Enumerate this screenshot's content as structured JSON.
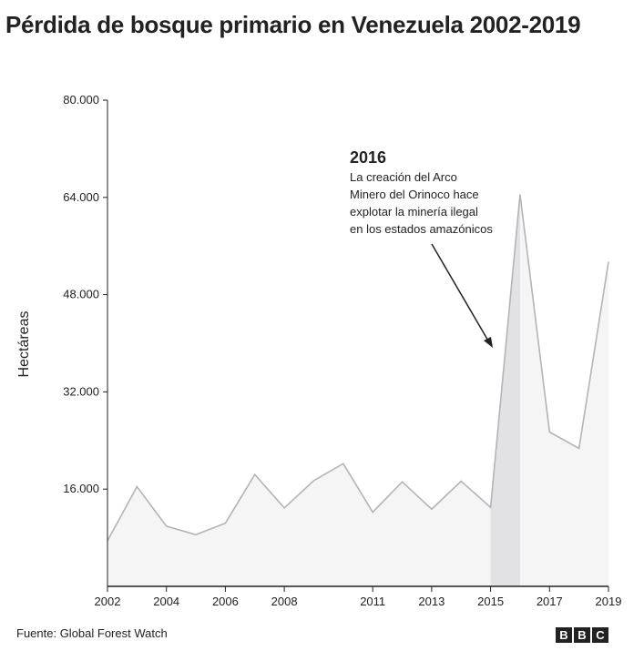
{
  "title": "Pérdida de bosque primario en Venezuela 2002-2019",
  "source": "Fuente: Global Forest Watch",
  "logo": [
    "B",
    "B",
    "C"
  ],
  "chart_data": {
    "type": "area",
    "title": "Pérdida de bosque primario en Venezuela 2002-2019",
    "ylabel": "Hectáreas",
    "xlabel": "",
    "ylim": [
      0,
      80000
    ],
    "xlim": [
      2002,
      2019
    ],
    "y_ticks": [
      16000,
      32000,
      48000,
      64000,
      80000
    ],
    "y_tick_labels": [
      "16.000",
      "32.000",
      "48.000",
      "64.000",
      "80.000"
    ],
    "x_ticks": [
      2002,
      2004,
      2006,
      2008,
      2011,
      2013,
      2015,
      2017,
      2019
    ],
    "x": [
      2002,
      2003,
      2004,
      2005,
      2006,
      2007,
      2008,
      2009,
      2010,
      2011,
      2012,
      2013,
      2014,
      2015,
      2016,
      2017,
      2018,
      2019
    ],
    "values": [
      7500,
      16400,
      9900,
      8500,
      10400,
      18400,
      12900,
      17400,
      20200,
      12200,
      17200,
      12700,
      17300,
      13000,
      64500,
      25400,
      22700,
      53400
    ],
    "highlight": {
      "from": 2015,
      "to": 2016
    },
    "annotation": {
      "heading": "2016",
      "lines": [
        "La creación del Arco",
        "Minero del Orinoco hace",
        "explotar la minería ilegal",
        "en los estados amazónicos"
      ]
    },
    "colors": {
      "fill": "#f5f5f5",
      "highlight": "#e2e2e5",
      "line": "#b4b4b8",
      "axis": "#222222"
    },
    "grid": false
  }
}
